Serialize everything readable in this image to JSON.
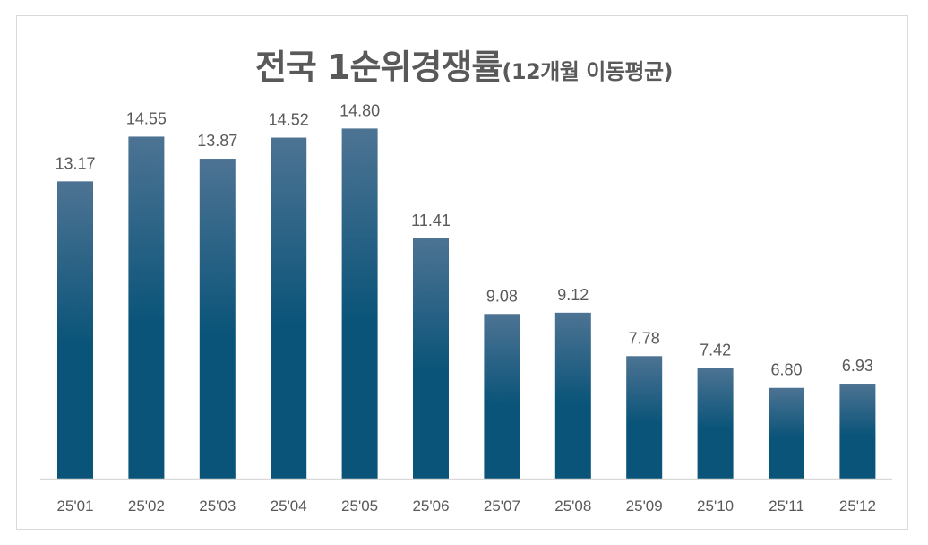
{
  "chart_data": {
    "type": "bar",
    "title": "전국 1순위경쟁률",
    "subtitle": "(12개월 이동평균)",
    "categories": [
      "25'01",
      "25'02",
      "25'03",
      "25'04",
      "25'05",
      "25'06",
      "25'07",
      "25'08",
      "25'09",
      "25'10",
      "25'11",
      "25'12"
    ],
    "values": [
      13.17,
      14.55,
      13.87,
      14.52,
      14.8,
      11.41,
      9.08,
      9.12,
      7.78,
      7.42,
      6.8,
      6.93
    ],
    "value_labels": [
      "13.17",
      "14.55",
      "13.87",
      "14.52",
      "14.80",
      "11.41",
      "9.08",
      "9.12",
      "7.78",
      "7.42",
      "6.80",
      "6.93"
    ],
    "xlabel": "",
    "ylabel": "",
    "ylim": [
      4,
      16
    ],
    "grid": false,
    "legend": "none",
    "colors": {
      "bar_top": "#4d7393",
      "bar_bottom": "#0a5479",
      "text": "#595959",
      "axis": "#d9d9d9"
    }
  }
}
